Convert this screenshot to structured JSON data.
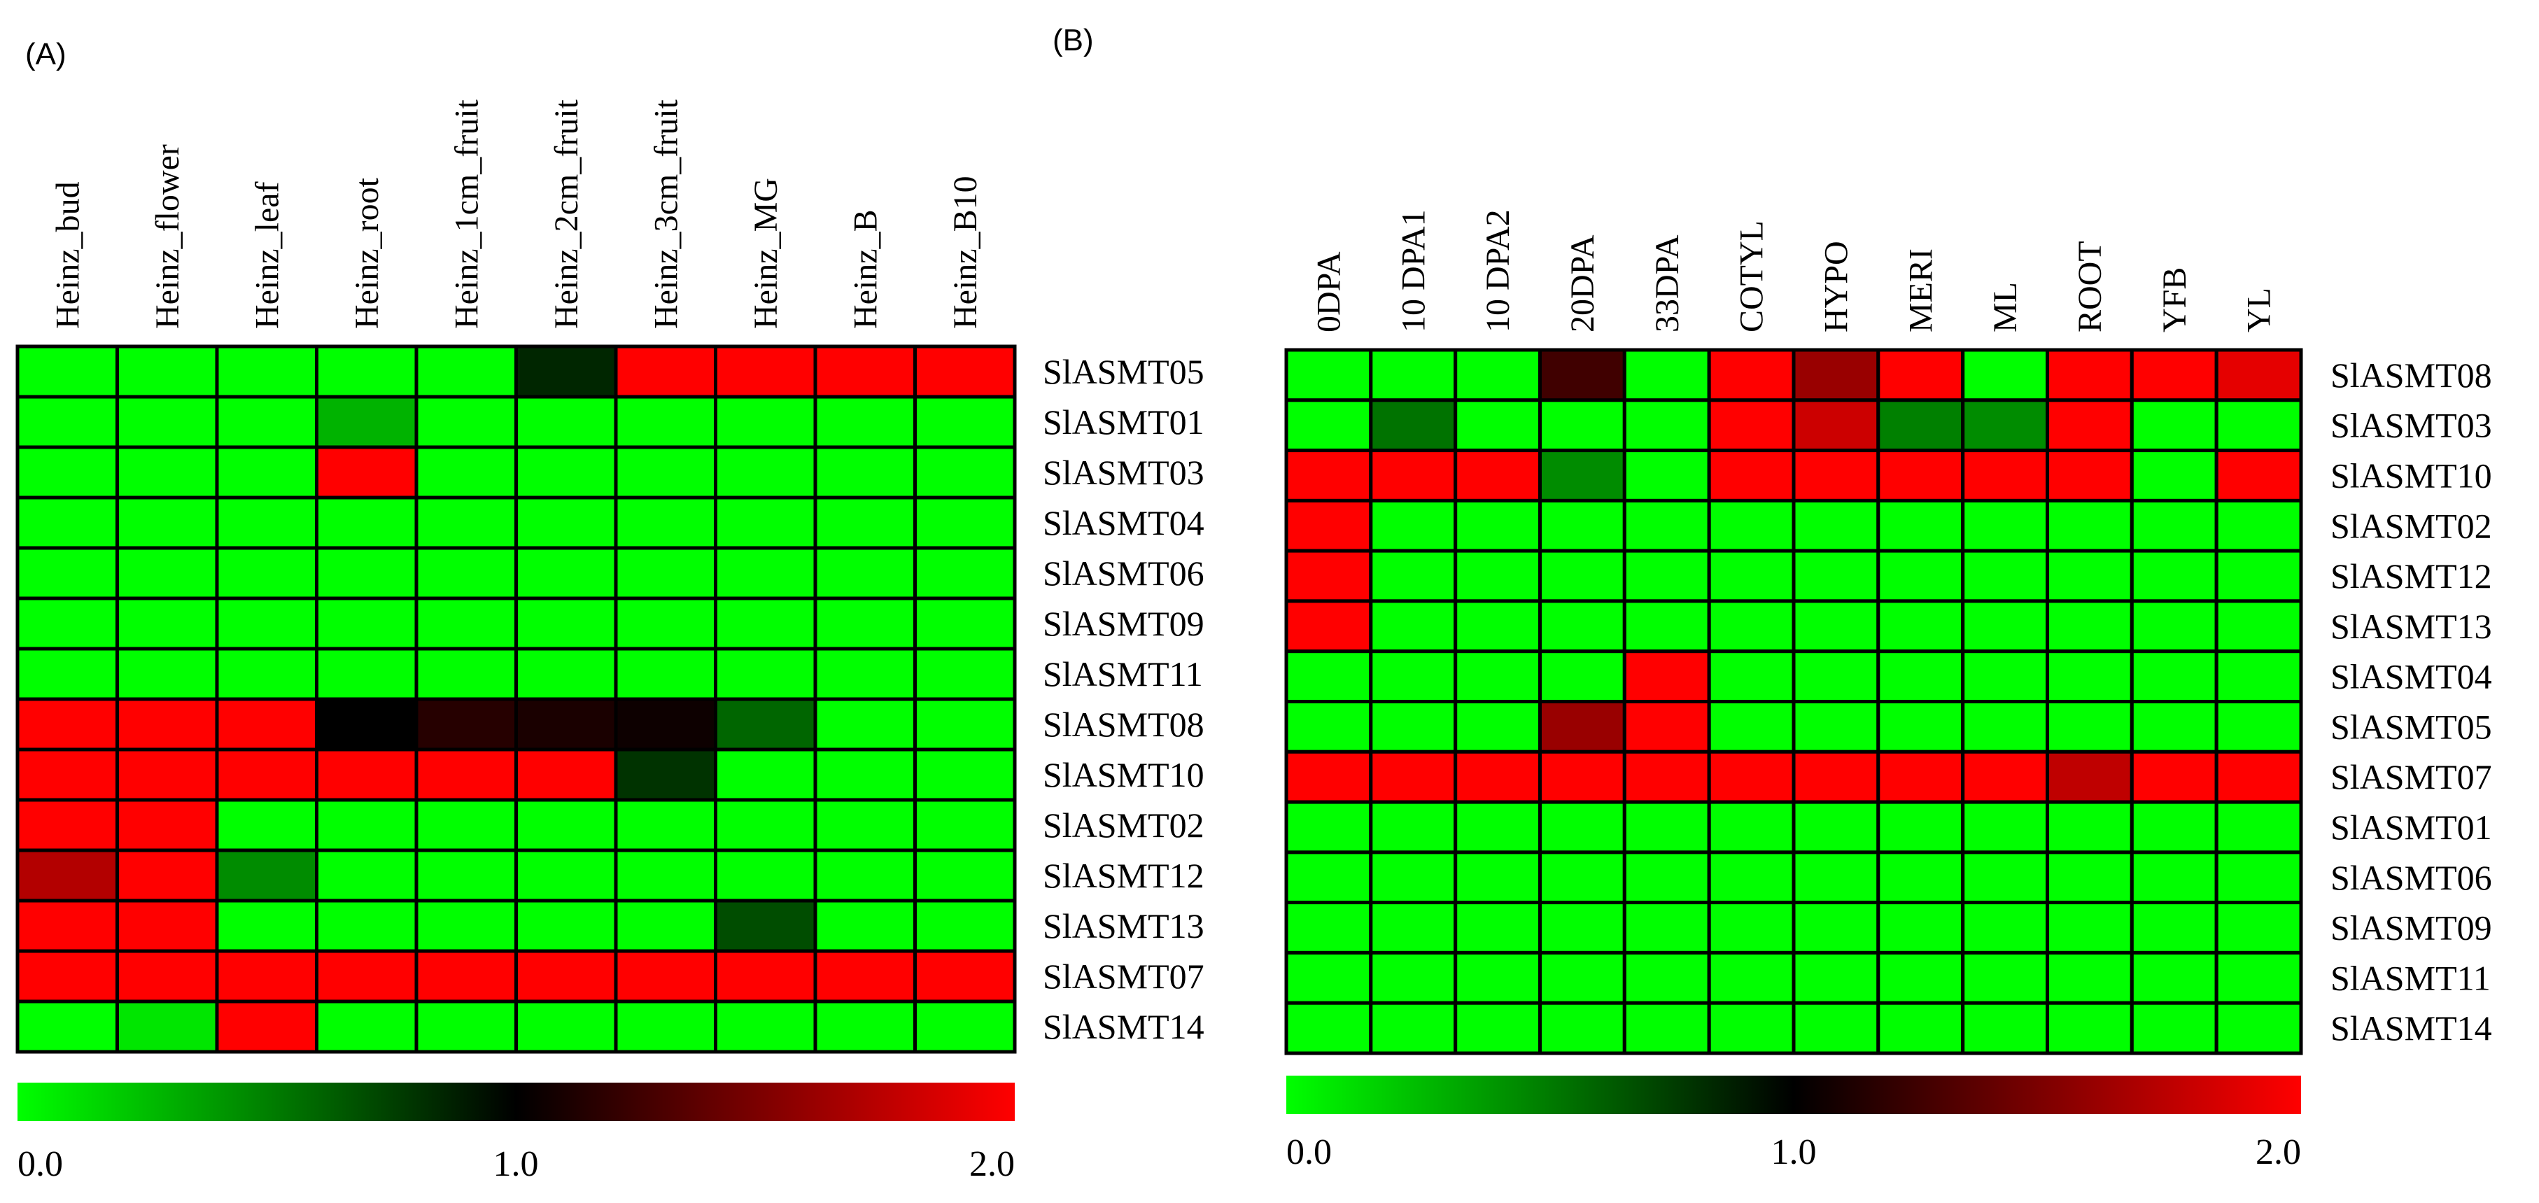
{
  "colors": {
    "low": "#00ff00",
    "mid": "#000000",
    "high": "#ff0000"
  },
  "chart_data": [
    {
      "type": "heatmap",
      "panel_label": "(A)",
      "columns": [
        "Heinz_bud",
        "Heinz_flower",
        "Heinz_leaf",
        "Heinz_root",
        "Heinz_1cm_fruit",
        "Heinz_2cm_fruit",
        "Heinz_3cm_fruit",
        "Heinz_MG",
        "Heinz_B",
        "Heinz_B10"
      ],
      "rows": [
        "SlASMT05",
        "SlASMT01",
        "SlASMT03",
        "SlASMT04",
        "SlASMT06",
        "SlASMT09",
        "SlASMT11",
        "SlASMT08",
        "SlASMT10",
        "SlASMT02",
        "SlASMT12",
        "SlASMT13",
        "SlASMT07",
        "SlASMT14"
      ],
      "values": [
        [
          0.0,
          0.0,
          0.0,
          0.0,
          0.0,
          0.85,
          2.0,
          2.0,
          2.0,
          2.0
        ],
        [
          0.0,
          0.0,
          0.0,
          0.3,
          0.0,
          0.0,
          0.0,
          0.0,
          0.0,
          0.0
        ],
        [
          0.0,
          0.0,
          0.0,
          2.0,
          0.0,
          0.0,
          0.0,
          0.0,
          0.0,
          0.0
        ],
        [
          0.0,
          0.0,
          0.0,
          0.0,
          0.0,
          0.0,
          0.0,
          0.0,
          0.0,
          0.0
        ],
        [
          0.0,
          0.0,
          0.0,
          0.0,
          0.0,
          0.0,
          0.0,
          0.0,
          0.0,
          0.0
        ],
        [
          0.0,
          0.0,
          0.0,
          0.0,
          0.0,
          0.0,
          0.0,
          0.0,
          0.0,
          0.0
        ],
        [
          0.0,
          0.0,
          0.0,
          0.0,
          0.0,
          0.0,
          0.0,
          0.0,
          0.0,
          0.0
        ],
        [
          2.0,
          2.0,
          2.0,
          1.0,
          1.15,
          1.1,
          1.05,
          0.6,
          0.0,
          0.0
        ],
        [
          2.0,
          2.0,
          2.0,
          2.0,
          2.0,
          2.0,
          0.8,
          0.0,
          0.0,
          0.0
        ],
        [
          2.0,
          2.0,
          0.0,
          0.0,
          0.0,
          0.0,
          0.0,
          0.0,
          0.0,
          0.0
        ],
        [
          1.7,
          2.0,
          0.45,
          0.0,
          0.0,
          0.0,
          0.0,
          0.0,
          0.0,
          0.0
        ],
        [
          2.0,
          2.0,
          0.0,
          0.0,
          0.0,
          0.0,
          0.0,
          0.7,
          0.0,
          0.0
        ],
        [
          2.0,
          2.0,
          2.0,
          2.0,
          2.0,
          2.0,
          2.0,
          2.0,
          2.0,
          2.0
        ],
        [
          0.0,
          0.1,
          2.0,
          0.0,
          0.0,
          0.0,
          0.0,
          0.0,
          0.0,
          0.0
        ]
      ],
      "colorbar": {
        "min": 0.0,
        "max": 2.0,
        "ticks": [
          "0.0",
          "1.0",
          "2.0"
        ]
      }
    },
    {
      "type": "heatmap",
      "panel_label": "(B)",
      "columns": [
        "0DPA",
        "10 DPA1",
        "10 DPA2",
        "20DPA",
        "33DPA",
        "COTYL",
        "HYPO",
        "MERI",
        "ML",
        "ROOT",
        "YFB",
        "YL"
      ],
      "rows": [
        "SlASMT08",
        "SlASMT03",
        "SlASMT10",
        "SlASMT02",
        "SlASMT12",
        "SlASMT13",
        "SlASMT04",
        "SlASMT05",
        "SlASMT07",
        "SlASMT01",
        "SlASMT06",
        "SlASMT09",
        "SlASMT11",
        "SlASMT14"
      ],
      "values": [
        [
          0.0,
          0.0,
          0.0,
          1.25,
          0.0,
          2.0,
          1.6,
          2.0,
          0.0,
          2.0,
          2.0,
          1.9
        ],
        [
          0.0,
          0.55,
          0.0,
          0.0,
          0.0,
          2.0,
          1.8,
          0.5,
          0.45,
          2.0,
          0.0,
          0.0
        ],
        [
          2.0,
          2.0,
          2.0,
          0.45,
          0.0,
          2.0,
          2.0,
          2.0,
          2.0,
          2.0,
          0.0,
          2.0
        ],
        [
          2.0,
          0.0,
          0.0,
          0.0,
          0.0,
          0.0,
          0.0,
          0.0,
          0.0,
          0.0,
          0.0,
          0.0
        ],
        [
          2.0,
          0.0,
          0.0,
          0.0,
          0.0,
          0.0,
          0.0,
          0.0,
          0.0,
          0.0,
          0.0,
          0.0
        ],
        [
          2.0,
          0.0,
          0.0,
          0.0,
          0.0,
          0.0,
          0.0,
          0.0,
          0.0,
          0.0,
          0.0,
          0.0
        ],
        [
          0.0,
          0.0,
          0.0,
          0.0,
          2.0,
          0.0,
          0.0,
          0.0,
          0.0,
          0.0,
          0.0,
          0.0
        ],
        [
          0.0,
          0.0,
          0.0,
          1.6,
          2.0,
          0.0,
          0.0,
          0.0,
          0.0,
          0.0,
          0.0,
          0.0
        ],
        [
          2.0,
          2.0,
          2.0,
          2.0,
          2.0,
          2.0,
          2.0,
          2.0,
          2.0,
          1.75,
          2.0,
          2.0
        ],
        [
          0.0,
          0.0,
          0.0,
          0.0,
          0.0,
          0.0,
          0.0,
          0.0,
          0.0,
          0.0,
          0.0,
          0.0
        ],
        [
          0.0,
          0.0,
          0.0,
          0.0,
          0.0,
          0.0,
          0.0,
          0.0,
          0.0,
          0.0,
          0.0,
          0.0
        ],
        [
          0.0,
          0.0,
          0.0,
          0.0,
          0.0,
          0.0,
          0.0,
          0.0,
          0.0,
          0.0,
          0.0,
          0.0
        ],
        [
          0.0,
          0.0,
          0.0,
          0.0,
          0.0,
          0.0,
          0.0,
          0.0,
          0.0,
          0.0,
          0.0,
          0.0
        ],
        [
          0.0,
          0.0,
          0.0,
          0.0,
          0.0,
          0.0,
          0.0,
          0.0,
          0.0,
          0.0,
          0.0,
          0.0
        ]
      ],
      "colorbar": {
        "min": 0.0,
        "max": 2.0,
        "ticks": [
          "0.0",
          "1.0",
          "2.0"
        ]
      }
    }
  ]
}
